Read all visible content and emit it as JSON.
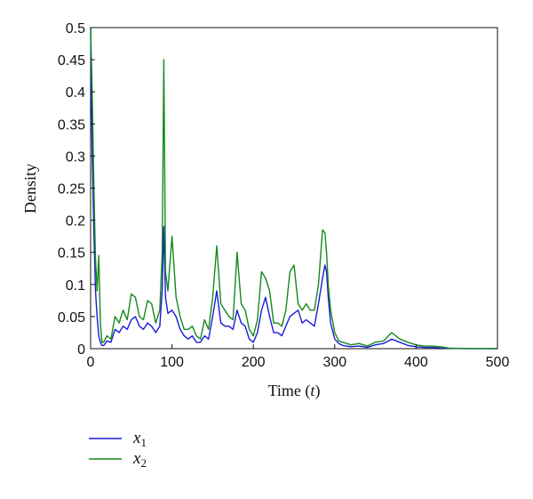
{
  "chart_data": {
    "type": "line",
    "title": "",
    "xlabel": "Time",
    "xlabel_var": "t",
    "ylabel": "Density",
    "xlim": [
      0,
      500
    ],
    "ylim": [
      0,
      0.5
    ],
    "xticks": [
      0,
      100,
      200,
      300,
      400,
      500
    ],
    "xtick_labels": [
      "0",
      "100",
      "200",
      "300",
      "400",
      "500"
    ],
    "yticks": [
      0,
      0.05,
      0.1,
      0.15,
      0.2,
      0.25,
      0.3,
      0.35,
      0.4,
      0.45,
      0.5
    ],
    "ytick_labels": [
      "0",
      "0.05",
      "0.1",
      "0.15",
      "0.2",
      "0.25",
      "0.3",
      "0.35",
      "0.4",
      "0.45",
      "0.5"
    ],
    "grid": false,
    "legend_position": "bottom-left, below plot",
    "series": [
      {
        "name": "x1",
        "legend_base": "x",
        "legend_sub": "1",
        "color": "#1a1adb",
        "x": [
          0,
          2,
          4,
          6,
          8,
          10,
          12,
          14,
          16,
          18,
          20,
          25,
          30,
          35,
          40,
          45,
          50,
          55,
          60,
          65,
          70,
          75,
          80,
          85,
          88,
          90,
          92,
          95,
          100,
          105,
          110,
          115,
          120,
          125,
          130,
          135,
          140,
          145,
          150,
          155,
          160,
          165,
          170,
          175,
          180,
          185,
          190,
          195,
          200,
          205,
          210,
          215,
          220,
          225,
          230,
          235,
          240,
          245,
          250,
          255,
          260,
          265,
          270,
          275,
          280,
          285,
          288,
          290,
          292,
          295,
          300,
          305,
          310,
          320,
          330,
          340,
          350,
          360,
          370,
          380,
          390,
          400,
          410,
          420,
          430,
          440,
          450,
          460,
          480,
          500
        ],
        "y": [
          0.5,
          0.3,
          0.18,
          0.09,
          0.05,
          0.02,
          0.01,
          0.005,
          0.005,
          0.008,
          0.012,
          0.01,
          0.03,
          0.025,
          0.035,
          0.03,
          0.045,
          0.05,
          0.035,
          0.03,
          0.04,
          0.035,
          0.025,
          0.035,
          0.09,
          0.19,
          0.08,
          0.055,
          0.06,
          0.05,
          0.03,
          0.02,
          0.015,
          0.02,
          0.01,
          0.01,
          0.02,
          0.015,
          0.05,
          0.09,
          0.04,
          0.035,
          0.035,
          0.03,
          0.06,
          0.04,
          0.035,
          0.015,
          0.01,
          0.025,
          0.06,
          0.08,
          0.05,
          0.025,
          0.025,
          0.02,
          0.035,
          0.05,
          0.055,
          0.06,
          0.04,
          0.045,
          0.04,
          0.035,
          0.07,
          0.11,
          0.13,
          0.12,
          0.08,
          0.04,
          0.015,
          0.008,
          0.005,
          0.003,
          0.004,
          0.002,
          0.006,
          0.008,
          0.015,
          0.01,
          0.005,
          0.003,
          0.002,
          0.002,
          0.001,
          0.0005,
          0.0003,
          0.0002,
          0.0001,
          0.0
        ]
      },
      {
        "name": "x2",
        "legend_base": "x",
        "legend_sub": "2",
        "color": "#14891a",
        "x": [
          0,
          2,
          4,
          6,
          8,
          10,
          12,
          14,
          16,
          18,
          20,
          25,
          30,
          35,
          40,
          45,
          50,
          55,
          60,
          65,
          70,
          75,
          80,
          85,
          88,
          90,
          92,
          95,
          100,
          105,
          110,
          115,
          120,
          125,
          130,
          135,
          140,
          145,
          150,
          155,
          160,
          165,
          170,
          175,
          180,
          185,
          190,
          195,
          200,
          205,
          210,
          215,
          220,
          225,
          230,
          235,
          240,
          245,
          250,
          255,
          260,
          265,
          270,
          275,
          280,
          285,
          288,
          290,
          292,
          295,
          300,
          305,
          310,
          320,
          330,
          340,
          350,
          360,
          370,
          380,
          390,
          400,
          410,
          420,
          430,
          440,
          450,
          460,
          480,
          500
        ],
        "y": [
          0.5,
          0.4,
          0.25,
          0.14,
          0.09,
          0.145,
          0.04,
          0.01,
          0.01,
          0.015,
          0.02,
          0.015,
          0.05,
          0.04,
          0.06,
          0.045,
          0.085,
          0.08,
          0.05,
          0.045,
          0.075,
          0.07,
          0.04,
          0.06,
          0.15,
          0.45,
          0.12,
          0.09,
          0.175,
          0.08,
          0.05,
          0.03,
          0.03,
          0.035,
          0.02,
          0.015,
          0.045,
          0.03,
          0.08,
          0.16,
          0.07,
          0.06,
          0.05,
          0.045,
          0.15,
          0.07,
          0.06,
          0.03,
          0.02,
          0.045,
          0.12,
          0.11,
          0.09,
          0.04,
          0.04,
          0.035,
          0.06,
          0.12,
          0.13,
          0.07,
          0.06,
          0.07,
          0.06,
          0.06,
          0.1,
          0.185,
          0.18,
          0.15,
          0.1,
          0.06,
          0.025,
          0.012,
          0.01,
          0.006,
          0.008,
          0.004,
          0.01,
          0.012,
          0.025,
          0.015,
          0.01,
          0.006,
          0.004,
          0.004,
          0.003,
          0.001,
          0.0006,
          0.0004,
          0.0002,
          0.0
        ]
      }
    ]
  }
}
